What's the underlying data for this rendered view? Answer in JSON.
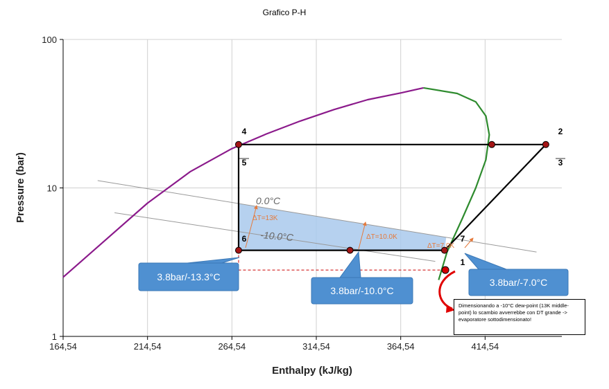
{
  "chart_data": {
    "type": "line",
    "title": "Grafico P-H",
    "xlabel": "Enthalpy (kJ/kg)",
    "ylabel": "Pressure (bar)",
    "y_scale": "log",
    "xlim": [
      164.54,
      460
    ],
    "ylim": [
      1,
      100
    ],
    "x_ticks": [
      164.54,
      214.54,
      264.54,
      314.54,
      364.54,
      414.54
    ],
    "x_tick_labels": [
      "164,54",
      "214,54",
      "264,54",
      "314,54",
      "364,54",
      "414,54"
    ],
    "y_ticks": [
      1,
      10,
      100
    ],
    "y_tick_labels": [
      "1",
      "10",
      "100"
    ],
    "grid": true,
    "series": [
      {
        "color": "#8b1a8b",
        "points": [
          [
            164.5,
            2.5
          ],
          [
            214.5,
            7.9
          ],
          [
            240,
            12.9
          ],
          [
            264.5,
            18.4
          ],
          [
            285,
            23.1
          ],
          [
            305,
            28.2
          ],
          [
            325,
            33.7
          ],
          [
            345,
            39.3
          ],
          [
            365,
            43.7
          ],
          [
            378,
            47.2
          ]
        ]
      },
      {
        "color": "#2e8b2e",
        "points": [
          [
            378,
            47.2
          ],
          [
            398,
            43.3
          ],
          [
            409,
            38.0
          ],
          [
            415,
            30.5
          ],
          [
            417,
            22.8
          ],
          [
            415,
            15.5
          ],
          [
            409,
            10.0
          ],
          [
            401,
            6.2
          ],
          [
            392,
            3.7
          ],
          [
            387,
            2.4
          ]
        ]
      },
      {
        "color": "#000000",
        "points": [
          [
            268.5,
            3.8
          ],
          [
            268.5,
            19.6
          ],
          [
            450.5,
            19.6
          ],
          [
            390.5,
            3.8
          ],
          [
            268.5,
            3.8
          ]
        ]
      },
      {
        "color": "#999999",
        "points": [
          [
            185,
            11.2
          ],
          [
            445,
            3.7
          ]
        ]
      },
      {
        "color": "#999999",
        "points": [
          [
            195,
            6.8
          ],
          [
            385,
            3.2
          ]
        ]
      }
    ],
    "points": [
      {
        "label": "4",
        "x": 268.5,
        "y": 19.6
      },
      {
        "label": "2",
        "x": 450.5,
        "y": 19.6
      },
      {
        "label": "",
        "x": 418.5,
        "y": 19.6
      },
      {
        "label": "6",
        "x": 268.5,
        "y": 3.8
      },
      {
        "label": "",
        "x": 334.5,
        "y": 3.8
      },
      {
        "label": "7",
        "x": 390.5,
        "y": 3.8
      },
      {
        "label": "1",
        "x": 391,
        "y": 2.8
      }
    ],
    "marker_labels": [
      "5",
      "3"
    ],
    "isotherm_labels": [
      "0.0°C",
      "-10.0°C"
    ],
    "delta_t_labels": [
      "ΔT=13K",
      "ΔT=10.0K",
      "ΔT=7.0K"
    ],
    "callouts": [
      "3.8bar/-13.3°C",
      "3.8bar/-10.0°C",
      "3.8bar/-7.0°C"
    ],
    "annotation": "Dimensionando a -10°C dew-point (13K middle-point) lo scambio avverrebbe con DT grande -> evaporatore sottodimensionato!"
  },
  "colors": {
    "callout_fill": "#4f90d1",
    "shade_fill": "#a9c9ec",
    "delta_t": "#e57a3c",
    "dashed": "#cc0000"
  }
}
